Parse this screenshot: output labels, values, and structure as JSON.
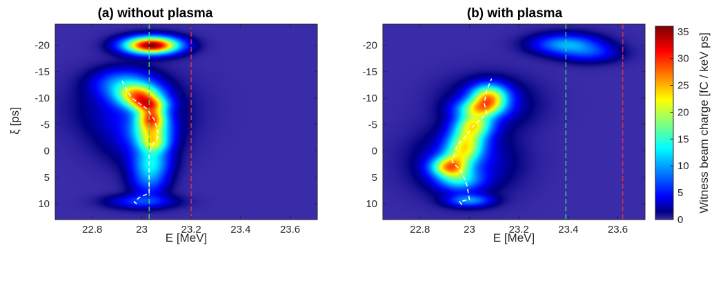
{
  "chart_data": {
    "type": "heatmap",
    "colors": {
      "background": "#3a2ba8",
      "green_marker": "#3fdb57",
      "red_marker": "#e0333a",
      "centroid": "#ffffff"
    },
    "colorscale": "jet",
    "colorbar": {
      "label": "Witness beam charge [fC / keV ps]",
      "range": [
        0,
        36
      ],
      "ticks": [
        0,
        5,
        10,
        15,
        20,
        25,
        30,
        35
      ]
    },
    "panels": [
      {
        "id": "a",
        "title": "(a) without plasma",
        "xlabel": "E [MeV]",
        "ylabel": "ξ [ps]",
        "xlim": [
          22.65,
          23.71
        ],
        "ylim": [
          -24,
          13
        ],
        "y_reversed": true,
        "xticks": [
          22.8,
          23,
          23.2,
          23.4,
          23.6
        ],
        "xticklabels": [
          "22.8",
          "23",
          "23.2",
          "23.4",
          "23.6"
        ],
        "yticks": [
          -20,
          -15,
          -10,
          -5,
          0,
          5,
          10
        ],
        "yticklabels": [
          "-20",
          "-15",
          "-10",
          "-5",
          "0",
          "5",
          "10"
        ],
        "vlines": [
          {
            "x": 23.03,
            "color": "green",
            "style": "dashed"
          },
          {
            "x": 23.2,
            "color": "red",
            "style": "dashed"
          }
        ],
        "blobs": [
          {
            "x": 23.04,
            "y": -20,
            "sx": 0.075,
            "sy": 1.1,
            "amp": 36,
            "rot": -0.1
          },
          {
            "x": 22.93,
            "y": -12.8,
            "sx": 0.08,
            "sy": 1.8,
            "amp": 9
          },
          {
            "x": 22.99,
            "y": -10.5,
            "sx": 0.06,
            "sy": 1.4,
            "amp": 21
          },
          {
            "x": 23.03,
            "y": -8.8,
            "sx": 0.05,
            "sy": 1.0,
            "amp": 16
          },
          {
            "x": 23.04,
            "y": -6.4,
            "sx": 0.04,
            "sy": 1.4,
            "amp": 20
          },
          {
            "x": 23.04,
            "y": -3.6,
            "sx": 0.05,
            "sy": 1.8,
            "amp": 16
          },
          {
            "x": 23.05,
            "y": -1.3,
            "sx": 0.04,
            "sy": 1.2,
            "amp": 10
          },
          {
            "x": 23.04,
            "y": 2.0,
            "sx": 0.05,
            "sy": 2.0,
            "amp": 10
          },
          {
            "x": 23.03,
            "y": 5.5,
            "sx": 0.05,
            "sy": 2.2,
            "amp": 7
          },
          {
            "x": 23.0,
            "y": 9.6,
            "sx": 0.09,
            "sy": 0.9,
            "amp": 6
          },
          {
            "x": 22.96,
            "y": -8.0,
            "sx": 0.14,
            "sy": 4.0,
            "amp": 4
          },
          {
            "x": 22.99,
            "y": -2.0,
            "sx": 0.1,
            "sy": 3.5,
            "amp": 3
          }
        ],
        "centroid": {
          "x": [
            22.98,
            22.97,
            22.99,
            23.03,
            23.03,
            23.03,
            23.03,
            23.04,
            23.07,
            23.05,
            23.02,
            22.96,
            22.94,
            22.92
          ],
          "y": [
            10,
            9.7,
            8.8,
            8.0,
            5.0,
            2.0,
            0.5,
            -1.0,
            -3.0,
            -6.0,
            -8.0,
            -10.0,
            -11.5,
            -13.3
          ]
        }
      },
      {
        "id": "b",
        "title": "(b) with plasma",
        "xlabel": "E [MeV]",
        "ylabel": "",
        "xlim": [
          22.65,
          23.71
        ],
        "ylim": [
          -24,
          13
        ],
        "y_reversed": true,
        "xticks": [
          22.8,
          23,
          23.2,
          23.4,
          23.6
        ],
        "xticklabels": [
          "22.8",
          "23",
          "23.2",
          "23.4",
          "23.6"
        ],
        "yticks": [
          -20,
          -15,
          -10,
          -5,
          0,
          5,
          10
        ],
        "yticklabels": [
          "-20",
          "-15",
          "-10",
          "-5",
          "0",
          "5",
          "10"
        ],
        "vlines": [
          {
            "x": 23.39,
            "color": "green",
            "style": "dashed"
          },
          {
            "x": 23.62,
            "color": "red",
            "style": "dashed"
          }
        ],
        "blobs": [
          {
            "x": 23.39,
            "y": -20.2,
            "sx": 0.09,
            "sy": 1.3,
            "amp": 10,
            "rot": 0.75
          },
          {
            "x": 23.49,
            "y": -18.5,
            "sx": 0.08,
            "sy": 1.2,
            "amp": 5,
            "rot": 0.6
          },
          {
            "x": 23.08,
            "y": -10.2,
            "sx": 0.05,
            "sy": 1.6,
            "amp": 21
          },
          {
            "x": 23.04,
            "y": -8.0,
            "sx": 0.06,
            "sy": 1.2,
            "amp": 15
          },
          {
            "x": 23.02,
            "y": -5.0,
            "sx": 0.05,
            "sy": 1.5,
            "amp": 17
          },
          {
            "x": 22.99,
            "y": -2.0,
            "sx": 0.05,
            "sy": 1.8,
            "amp": 15
          },
          {
            "x": 22.97,
            "y": 0.5,
            "sx": 0.05,
            "sy": 1.5,
            "amp": 11
          },
          {
            "x": 22.92,
            "y": 3.0,
            "sx": 0.05,
            "sy": 1.3,
            "amp": 21
          },
          {
            "x": 22.96,
            "y": 5.5,
            "sx": 0.06,
            "sy": 1.4,
            "amp": 10
          },
          {
            "x": 23.0,
            "y": 9.4,
            "sx": 0.06,
            "sy": 0.8,
            "amp": 9
          },
          {
            "x": 22.98,
            "y": 2.0,
            "sx": 0.13,
            "sy": 4.0,
            "amp": 5
          },
          {
            "x": 23.08,
            "y": -9.0,
            "sx": 0.12,
            "sy": 3.2,
            "amp": 4
          }
        ],
        "centroid": {
          "x": [
            22.97,
            22.96,
            23.0,
            22.99,
            22.97,
            22.93,
            22.95,
            22.99,
            23.02,
            23.07,
            23.06,
            23.07,
            23.09
          ],
          "y": [
            10.2,
            9.6,
            9.2,
            6.5,
            4.0,
            2.0,
            -1.0,
            -3.0,
            -5.0,
            -7.0,
            -9.0,
            -11.5,
            -13.7
          ]
        }
      }
    ]
  }
}
